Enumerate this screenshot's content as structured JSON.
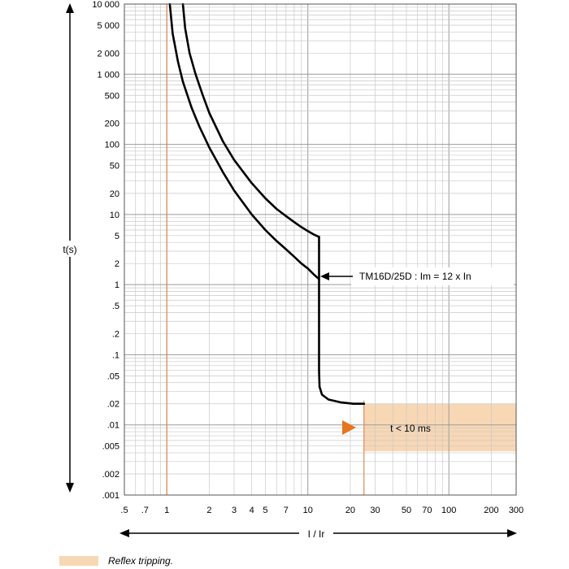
{
  "chart_data": {
    "type": "line",
    "xlabel": "I / Ir",
    "ylabel": "t(s)",
    "x_scale": "log",
    "y_scale": "log",
    "xlim": [
      0.5,
      300
    ],
    "ylim": [
      0.001,
      10000
    ],
    "grid": true,
    "xtick_labels": [
      ".5",
      ".7",
      "1",
      "2",
      "3",
      "4",
      "5",
      "7",
      "10",
      "20",
      "30",
      "50",
      "70",
      "100",
      "200",
      "300"
    ],
    "xtick_values": [
      0.5,
      0.7,
      1,
      2,
      3,
      4,
      5,
      7,
      10,
      20,
      30,
      50,
      70,
      100,
      200,
      300
    ],
    "ytick_labels": [
      "10 000",
      "5 000",
      "2 000",
      "1 000",
      "500",
      "200",
      "100",
      "50",
      "20",
      "10",
      "5",
      "2",
      "1",
      ".5",
      ".2",
      ".1",
      ".05",
      ".02",
      ".01",
      ".005",
      ".002",
      ".001"
    ],
    "ytick_values": [
      10000,
      5000,
      2000,
      1000,
      500,
      200,
      100,
      50,
      20,
      10,
      5,
      2,
      1,
      0.5,
      0.2,
      0.1,
      0.05,
      0.02,
      0.01,
      0.005,
      0.002,
      0.001
    ],
    "series": [
      {
        "x": [
          1.05,
          1.1,
          1.2,
          1.3,
          1.5,
          1.7,
          2,
          2.5,
          3,
          4,
          5,
          6,
          7,
          8,
          9,
          10,
          11,
          12
        ],
        "y": [
          10000,
          3800,
          1500,
          780,
          330,
          180,
          90,
          40,
          22,
          10,
          6,
          4.2,
          3.2,
          2.5,
          2.0,
          1.7,
          1.4,
          1.2
        ]
      },
      {
        "x": [
          1.3,
          1.35,
          1.45,
          1.6,
          1.8,
          2,
          2.5,
          3,
          4,
          5,
          6,
          7,
          8,
          9,
          10,
          11,
          12
        ],
        "y": [
          10000,
          4500,
          2000,
          1000,
          500,
          280,
          110,
          60,
          28,
          17,
          12,
          9.5,
          7.8,
          6.6,
          5.8,
          5.2,
          4.8
        ]
      },
      {
        "x": [
          12,
          12,
          12.1,
          12.6,
          14,
          17,
          21,
          25
        ],
        "y": [
          4.8,
          0.06,
          0.035,
          0.027,
          0.023,
          0.021,
          0.02,
          0.02
        ]
      }
    ],
    "annotations": [
      "TM16D/25D : Im = 12 x In",
      "t < 10 ms"
    ],
    "shaded_region": {
      "x": [
        25,
        300
      ],
      "y": [
        0.0042,
        0.02
      ],
      "color": "#f8d7b4"
    },
    "reference_lines": {
      "x": [
        1,
        25
      ],
      "color": "#e08a56"
    },
    "legend": "Reflex tripping.",
    "colors": {
      "curve": "#000000",
      "shade": "#f8d7b4",
      "accent": "#e6761e",
      "ref_line": "#e08a56",
      "grid_minor": "#c9c9c9",
      "grid_major": "#9a9a9a"
    }
  }
}
